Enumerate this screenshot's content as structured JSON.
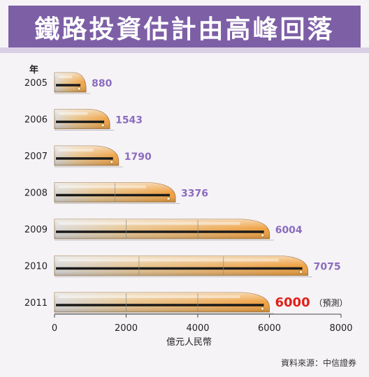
{
  "title": "鐵路投資估計由高峰回落",
  "year_unit_label": "年",
  "value_note": "（預測）",
  "source": "資料來源：中信證券",
  "colors": {
    "banner": "#7d5fa6",
    "value_label": "#8a6cc0",
    "forecast_label": "#e0201a",
    "train_orange": "#f0a040"
  },
  "chart_data": {
    "type": "bar",
    "orientation": "horizontal",
    "categories": [
      "2005",
      "2006",
      "2007",
      "2008",
      "2009",
      "2010",
      "2011"
    ],
    "values": [
      880,
      1543,
      1790,
      3376,
      6004,
      7075,
      6000
    ],
    "value_labels": [
      "880",
      "1543",
      "1790",
      "3376",
      "6004",
      "7075",
      "6000"
    ],
    "forecast_index": 6,
    "xlabel": "億元人民幣",
    "xlim": [
      0,
      8000
    ],
    "xticks": [
      0,
      2000,
      4000,
      6000,
      8000
    ],
    "xtick_labels": [
      "0",
      "2000",
      "4000",
      "6000",
      "8000"
    ],
    "grid": false,
    "bar_style": "train"
  }
}
